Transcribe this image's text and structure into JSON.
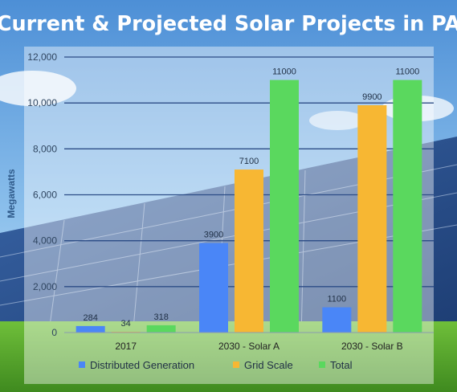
{
  "chart_data": {
    "type": "bar",
    "title": "Current & Projected Solar Projects in PA",
    "ylabel": "Megawatts",
    "xlabel": "",
    "ylim": [
      0,
      12000
    ],
    "yticks": [
      "0",
      "2,000",
      "4,000",
      "6,000",
      "8,000",
      "10,000",
      "12,000"
    ],
    "ytick_values": [
      0,
      2000,
      4000,
      6000,
      8000,
      10000,
      12000
    ],
    "grid": true,
    "legend_position": "bottom",
    "categories": [
      "2017",
      "2030 - Solar A",
      "2030 - Solar B"
    ],
    "series": [
      {
        "name": "Distributed Generation",
        "values": [
          284,
          3900,
          1100
        ],
        "labels": [
          "284",
          "3900",
          "1100"
        ],
        "color": "#4a86f7"
      },
      {
        "name": "Grid Scale",
        "values": [
          34,
          7100,
          9900
        ],
        "labels": [
          "34",
          "7100",
          "9900"
        ],
        "color": "#f7b733"
      },
      {
        "name": "Total",
        "values": [
          318,
          11000,
          11000
        ],
        "labels": [
          "318",
          "11000",
          "11000"
        ],
        "color": "#5ad85e"
      }
    ]
  }
}
